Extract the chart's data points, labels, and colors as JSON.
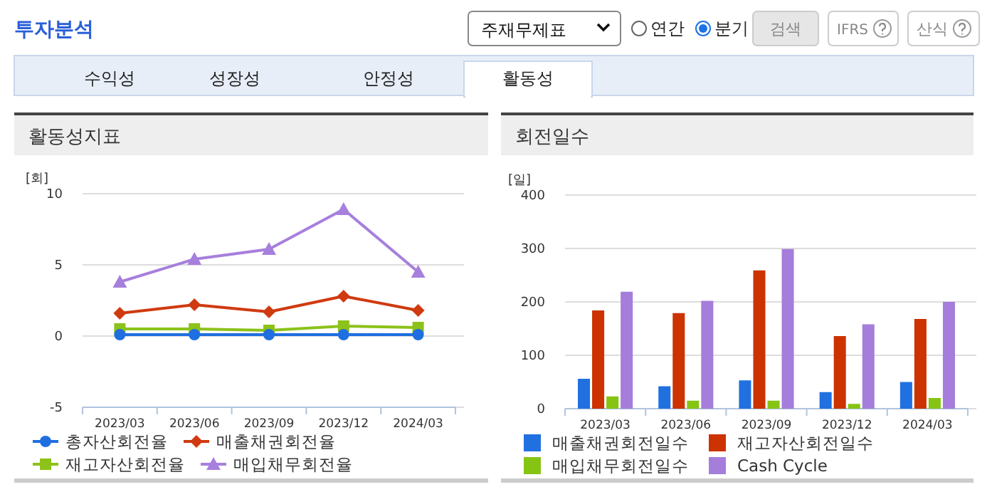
{
  "chart_data": [
    {
      "type": "line",
      "title": "활동성지표",
      "ylabel": "[회]",
      "categories": [
        "2023/03",
        "2023/06",
        "2023/09",
        "2023/12",
        "2024/03"
      ],
      "ylim": [
        -5,
        10
      ],
      "yticks": [
        -5,
        0,
        5,
        10
      ],
      "grid": "y",
      "legend": "bottom",
      "annotations": [
        "투자분석",
        "주재무제표",
        "연간",
        "분기",
        "검색",
        "IFRS",
        "산식",
        "수익성",
        "성장성",
        "안정성",
        "활동성"
      ],
      "series": [
        {
          "name": "총자산회전율",
          "color": "#1f6fe0",
          "marker": "circle",
          "values": [
            0.1,
            0.1,
            0.1,
            0.1,
            0.1
          ]
        },
        {
          "name": "매출채권회전율",
          "color": "#d03a10",
          "marker": "diamond",
          "values": [
            1.6,
            2.2,
            1.7,
            2.8,
            1.8
          ]
        },
        {
          "name": "재고자산회전율",
          "color": "#8cc21a",
          "marker": "square",
          "values": [
            0.5,
            0.5,
            0.4,
            0.7,
            0.6
          ]
        },
        {
          "name": "매입채무회전율",
          "color": "#a77fdc",
          "marker": "triangle",
          "values": [
            3.8,
            5.4,
            6.1,
            8.9,
            4.5
          ]
        }
      ]
    },
    {
      "type": "bar",
      "title": "회전일수",
      "ylabel": "[일]",
      "categories": [
        "2023/03",
        "2023/06",
        "2023/09",
        "2023/12",
        "2024/03"
      ],
      "ylim": [
        0,
        400
      ],
      "yticks": [
        0,
        100,
        200,
        300,
        400
      ],
      "grid": "y",
      "legend": "bottom",
      "series": [
        {
          "name": "매출채권회전일수",
          "color": "#2170e0",
          "values": [
            56,
            42,
            53,
            31,
            50
          ]
        },
        {
          "name": "재고자산회전일수",
          "color": "#cc3300",
          "values": [
            184,
            179,
            259,
            136,
            168
          ]
        },
        {
          "name": "매입채무회전일수",
          "color": "#86c414",
          "values": [
            23,
            15,
            15,
            9,
            20
          ]
        },
        {
          "name": "Cash Cycle",
          "color": "#a57ddb",
          "values": [
            219,
            202,
            299,
            158,
            200
          ]
        }
      ]
    }
  ]
}
